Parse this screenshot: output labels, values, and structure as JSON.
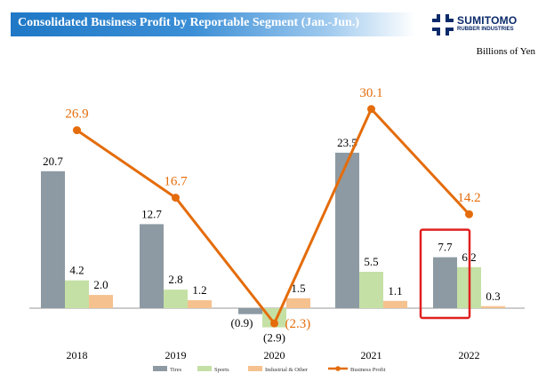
{
  "header": {
    "title": "Consolidated Business Profit by Reportable Segment (Jan.-Jun.)"
  },
  "logo": {
    "name": "SUMITOMO",
    "sub": "RUBBER INDUSTRIES"
  },
  "unit_label": "Billions of Yen",
  "chart_data": {
    "type": "bar",
    "title": "Consolidated Business Profit by Reportable Segment (Jan.-Jun.)",
    "ylabel": "Billions of Yen",
    "categories": [
      "2018",
      "2019",
      "2020",
      "2021",
      "2022"
    ],
    "series": [
      {
        "name": "Tires",
        "type": "bar",
        "color": "#8d9aa3",
        "values": [
          20.7,
          12.7,
          -0.9,
          23.5,
          7.7
        ],
        "labels": [
          "20.7",
          "12.7",
          "(0.9)",
          "23.5",
          "7.7"
        ]
      },
      {
        "name": "Sports",
        "type": "bar",
        "color": "#c5e0a5",
        "values": [
          4.2,
          2.8,
          -2.9,
          5.5,
          6.2
        ],
        "labels": [
          "4.2",
          "2.8",
          "(2.9)",
          "5.5",
          "6.2"
        ]
      },
      {
        "name": "Industrial & Other",
        "type": "bar",
        "color": "#f5c18e",
        "values": [
          2.0,
          1.2,
          1.5,
          1.1,
          0.3
        ],
        "labels": [
          "2.0",
          "1.2",
          "1.5",
          "1.1",
          "0.3"
        ]
      },
      {
        "name": "Business Profit",
        "type": "line",
        "color": "#e46c0a",
        "values": [
          26.9,
          16.7,
          -2.3,
          30.1,
          14.2
        ],
        "labels": [
          "26.9",
          "16.7",
          "(2.3)",
          "30.1",
          "14.2"
        ]
      }
    ],
    "highlight": {
      "category": "2022",
      "series": "Tires",
      "color": "#e02020"
    },
    "legend": {
      "position": "bottom"
    },
    "grid": false
  }
}
